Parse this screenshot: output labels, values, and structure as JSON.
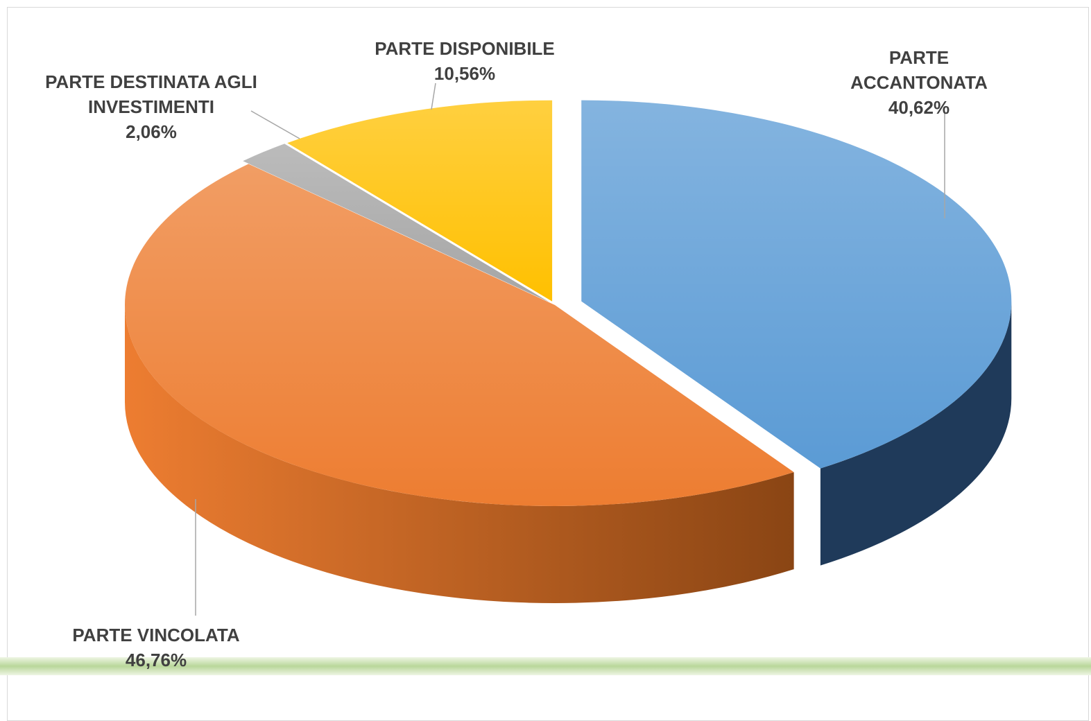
{
  "chart_data": {
    "type": "pie",
    "categories": [
      "PARTE ACCANTONATA",
      "PARTE VINCOLATA",
      "PARTE DESTINATA AGLI INVESTIMENTI",
      "PARTE DISPONIBILE"
    ],
    "values": [
      40.62,
      46.76,
      2.06,
      10.56
    ],
    "value_labels": [
      "40,62%",
      "46,76%",
      "2,06%",
      "10,56%"
    ],
    "colors": [
      "#5b9bd5",
      "#ed7d31",
      "#a5a5a5",
      "#ffc000"
    ]
  }
}
